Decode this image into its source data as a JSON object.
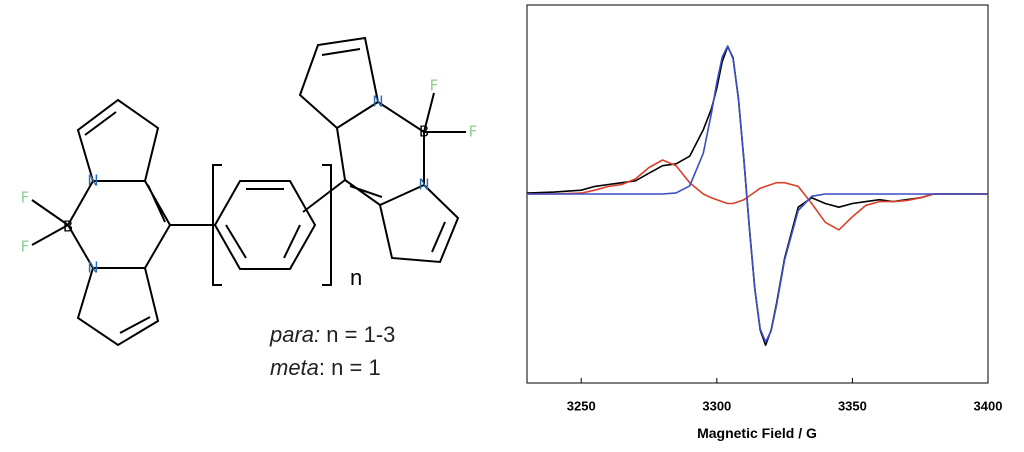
{
  "structure": {
    "atoms": [
      "F",
      "F",
      "B",
      "N",
      "N",
      "N",
      "B",
      "F",
      "F",
      "N"
    ],
    "repeat": "n",
    "conditions": [
      {
        "isomer": "para:",
        "rule": "n = 1-3"
      },
      {
        "isomer": "meta",
        "rule": ": n = 1"
      }
    ]
  },
  "chart_data": {
    "type": "line",
    "x_label": "Magnetic Field / G",
    "x": [
      3230,
      3240,
      3250,
      3255,
      3260,
      3265,
      3270,
      3275,
      3280,
      3285,
      3290,
      3295,
      3298,
      3300,
      3302,
      3304,
      3306,
      3308,
      3310,
      3312,
      3314,
      3316,
      3318,
      3320,
      3322,
      3325,
      3330,
      3335,
      3340,
      3345,
      3350,
      3355,
      3360,
      3365,
      3370,
      3375,
      3380,
      3390,
      3400
    ],
    "series": [
      {
        "color": "#000000",
        "values": [
          0.005,
          0.01,
          0.02,
          0.04,
          0.05,
          0.06,
          0.07,
          0.11,
          0.15,
          0.16,
          0.2,
          0.34,
          0.45,
          0.56,
          0.7,
          0.78,
          0.72,
          0.5,
          0.18,
          -0.18,
          -0.5,
          -0.72,
          -0.8,
          -0.72,
          -0.58,
          -0.34,
          -0.07,
          -0.02,
          -0.05,
          -0.07,
          -0.05,
          -0.04,
          -0.03,
          -0.04,
          -0.03,
          -0.02,
          0,
          0,
          0
        ]
      },
      {
        "color": "#d9412b",
        "values": [
          0,
          0,
          0.005,
          0.02,
          0.04,
          0.05,
          0.08,
          0.14,
          0.18,
          0.15,
          0.06,
          0,
          -0.02,
          -0.03,
          -0.04,
          -0.05,
          -0.05,
          -0.04,
          -0.03,
          -0.01,
          0.01,
          0.03,
          0.04,
          0.05,
          0.06,
          0.06,
          0.04,
          -0.05,
          -0.15,
          -0.19,
          -0.12,
          -0.06,
          -0.04,
          -0.04,
          -0.035,
          -0.02,
          0,
          0,
          0
        ]
      },
      {
        "color": "#3b4fc4",
        "values": [
          0,
          0,
          0,
          0,
          0,
          0,
          0,
          0,
          0,
          0.006,
          0.043,
          0.216,
          0.427,
          0.59,
          0.725,
          0.783,
          0.714,
          0.504,
          0.182,
          -0.182,
          -0.504,
          -0.714,
          -0.783,
          -0.725,
          -0.59,
          -0.349,
          -0.088,
          -0.012,
          0,
          0,
          0,
          0,
          0,
          0,
          0,
          0,
          0,
          0,
          0
        ]
      }
    ],
    "xlim": [
      3230,
      3400
    ],
    "xticks": [
      3250,
      3300,
      3350,
      3400
    ],
    "ylim": [
      -1,
      1
    ],
    "grid": false
  }
}
